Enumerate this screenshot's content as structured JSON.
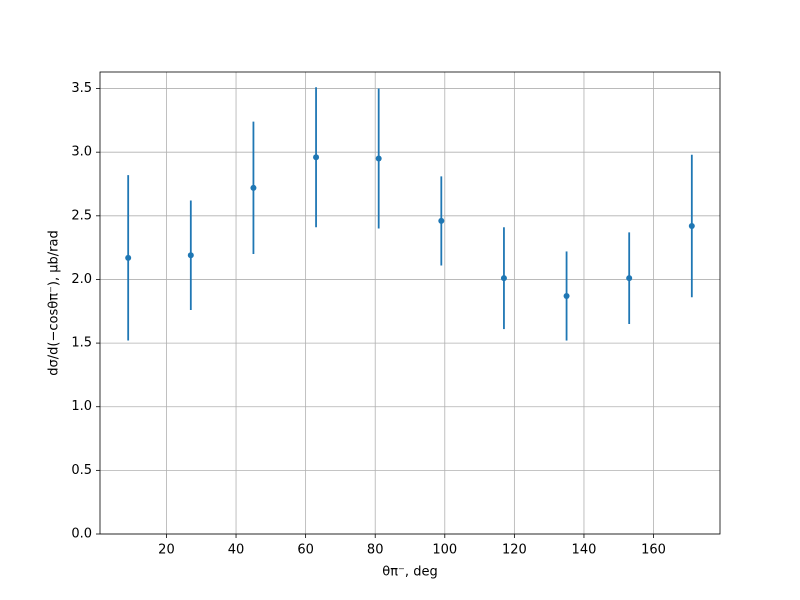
{
  "chart_data": {
    "type": "errorbar",
    "xlabel": "θπ⁻, deg",
    "ylabel": "dσ/d(−cosθπ⁻), μb/rad",
    "x": [
      9,
      27,
      45,
      63,
      81,
      99,
      117,
      135,
      153,
      171
    ],
    "values": [
      2.17,
      2.19,
      2.72,
      2.96,
      2.95,
      2.46,
      2.01,
      1.87,
      2.01,
      2.42
    ],
    "errors": [
      0.65,
      0.43,
      0.52,
      0.55,
      0.55,
      0.35,
      0.4,
      0.35,
      0.36,
      0.56
    ],
    "color": "#1f77b4",
    "xlim": [
      0.9,
      179.1
    ],
    "xticks": [
      20,
      40,
      60,
      80,
      100,
      120,
      140,
      160
    ],
    "ylim": [
      0,
      3.63
    ],
    "yticks": [
      {
        "value": 0,
        "label": "0.0"
      },
      {
        "value": 0.5,
        "label": "0.5"
      },
      {
        "value": 1,
        "label": "1.0"
      },
      {
        "value": 1.5,
        "label": "1.5"
      },
      {
        "value": 2,
        "label": "2.0"
      },
      {
        "value": 2.5,
        "label": "2.5"
      },
      {
        "value": 3,
        "label": "3.0"
      },
      {
        "value": 3.5,
        "label": "3.5"
      }
    ],
    "grid": true
  }
}
